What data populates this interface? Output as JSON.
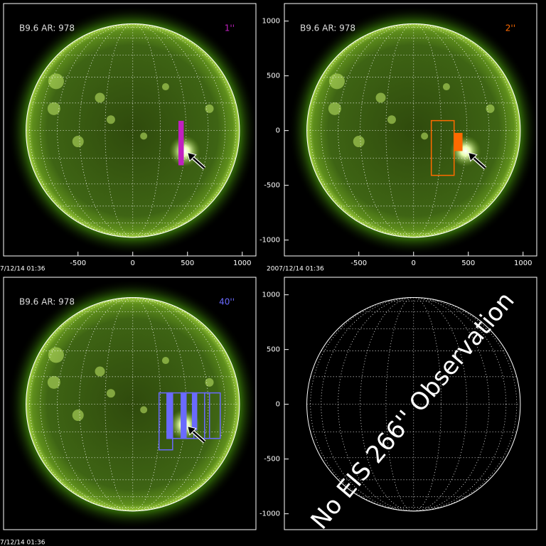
{
  "chart_data": [
    {
      "type": "image",
      "label": "B9.6 AR:  978",
      "slit": "1''",
      "color": "#c020c0",
      "timestamp": "7/12/14 01:36",
      "xlim": [
        -1180,
        1125
      ],
      "ylim": [
        -1145,
        1160
      ],
      "xticks": [
        -500,
        0,
        500,
        1000
      ],
      "boxes": [
        {
          "x": [
            422,
            461
          ],
          "y": [
            -312,
            84
          ],
          "filled": true
        }
      ]
    },
    {
      "type": "image",
      "label": "B9.6 AR:  978",
      "slit": "2''",
      "color": "#ff6a00",
      "timestamp": "2007/12/14 01:36",
      "xlim": [
        -1180,
        1125
      ],
      "ylim": [
        -1145,
        1160
      ],
      "xticks": [
        -500,
        0,
        500,
        1000
      ],
      "yticks": [
        -1000,
        -500,
        0,
        500,
        1000
      ],
      "boxes": [
        {
          "x": [
            162,
            370
          ],
          "y": [
            -409,
            91
          ],
          "filled": false
        },
        {
          "x": [
            377,
            442
          ],
          "y": [
            -182,
            -26
          ],
          "filled": true
        }
      ]
    },
    {
      "type": "image",
      "label": "B9.6 AR:  978",
      "slit": "40''",
      "color": "#6a6aff",
      "timestamp": "7/12/14 01:36",
      "xlim": [
        -1180,
        1125
      ],
      "ylim": [
        -1145,
        1160
      ],
      "boxes": [
        {
          "x": [
            240,
            364
          ],
          "y": [
            -416,
            104
          ],
          "filled": false
        },
        {
          "x": [
            331,
            558
          ],
          "y": [
            -312,
            104
          ],
          "filled": false
        },
        {
          "x": [
            448,
            701
          ],
          "y": [
            -312,
            104
          ],
          "filled": false
        },
        {
          "x": [
            656,
            799
          ],
          "y": [
            -312,
            104
          ],
          "filled": false
        },
        {
          "x": [
            312,
            357
          ],
          "y": [
            -312,
            104
          ],
          "filled": true
        },
        {
          "x": [
            442,
            487
          ],
          "y": [
            -312,
            104
          ],
          "filled": true
        },
        {
          "x": [
            545,
            584
          ],
          "y": [
            -234,
            104
          ],
          "filled": true
        }
      ]
    },
    {
      "type": "empty",
      "message": "No EIS 266'' Observation",
      "xlim": [
        -1180,
        1125
      ],
      "ylim": [
        -1145,
        1160
      ],
      "yticks": [
        -1000,
        -500,
        0,
        500,
        1000
      ]
    }
  ]
}
